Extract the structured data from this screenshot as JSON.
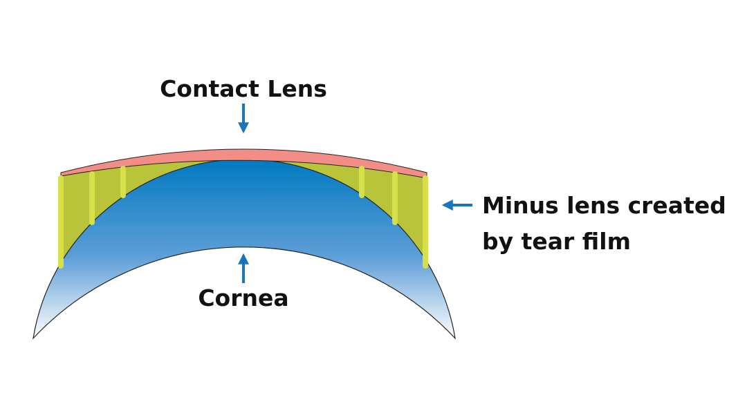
{
  "labels": {
    "contact_lens": "Contact Lens",
    "minus_lens": [
      "Minus lens created",
      "by tear film"
    ],
    "cornea": "Cornea"
  }
}
